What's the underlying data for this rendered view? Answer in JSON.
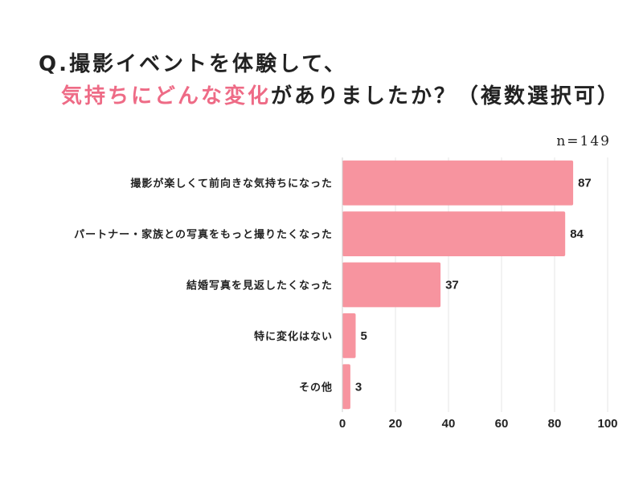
{
  "title": {
    "line1": "Q.撮影イベントを体験して、",
    "line2_highlight": "気持ちにどんな変化",
    "line2_rest": "がありましたか？（複数選択可）"
  },
  "sample_size": "n=149",
  "chart_data": {
    "type": "bar",
    "orientation": "horizontal",
    "categories": [
      "撮影が楽しくて前向きな気持ちになった",
      "パートナー・家族との写真をもっと撮りたくなった",
      "結婚写真を見返したくなった",
      "特に変化はない",
      "その他"
    ],
    "values": [
      87,
      84,
      37,
      5,
      3
    ],
    "xlim": [
      0,
      100
    ],
    "xticks": [
      0,
      20,
      40,
      60,
      80,
      100
    ],
    "grid": true,
    "bar_color": "#f7949f",
    "grid_color": "#e6e6e6"
  }
}
